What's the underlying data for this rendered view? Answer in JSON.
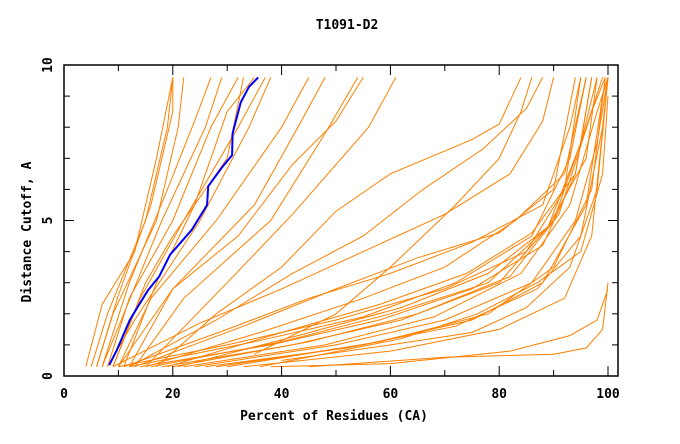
{
  "chart_data": {
    "type": "line",
    "title": "T1091-D2",
    "xlabel": "Percent of Residues (CA)",
    "ylabel": "Distance Cutoff, A",
    "xlim": [
      0,
      101.8
    ],
    "ylim": [
      0,
      10
    ],
    "xticks": [
      "0",
      "20",
      "40",
      "60",
      "80",
      "100"
    ],
    "yticks": [
      "0",
      "5",
      "10"
    ],
    "grid": false,
    "legend": "none",
    "colors": {
      "highlight": "#0000ff",
      "other": "#ff8000"
    },
    "highlight_series": [
      [
        8.3,
        0.35
      ],
      [
        9.7,
        0.83
      ],
      [
        12.1,
        1.8
      ],
      [
        15.4,
        2.75
      ],
      [
        17.5,
        3.2
      ],
      [
        19.5,
        3.9
      ],
      [
        23.5,
        4.7
      ],
      [
        26.3,
        5.5
      ],
      [
        26.5,
        6.1
      ],
      [
        29,
        6.7
      ],
      [
        30.9,
        7.1
      ],
      [
        31,
        7.8
      ],
      [
        32.5,
        8.8
      ],
      [
        34,
        9.3
      ],
      [
        35.7,
        9.6
      ]
    ],
    "series": [
      [
        [
          5,
          0.3
        ],
        [
          8,
          2
        ],
        [
          15,
          5
        ],
        [
          19,
          8
        ],
        [
          20,
          9.6
        ]
      ],
      [
        [
          6,
          0.3
        ],
        [
          9,
          2
        ],
        [
          17,
          5
        ],
        [
          21,
          8
        ],
        [
          22,
          9.6
        ]
      ],
      [
        [
          4,
          0.3
        ],
        [
          7,
          2.3
        ],
        [
          13,
          4
        ],
        [
          17,
          7
        ],
        [
          20,
          9.6
        ]
      ],
      [
        [
          7,
          0.3
        ],
        [
          11,
          2
        ],
        [
          18,
          5
        ],
        [
          26,
          8
        ],
        [
          29,
          9.6
        ]
      ],
      [
        [
          8,
          0.3
        ],
        [
          12,
          2.5
        ],
        [
          20,
          5
        ],
        [
          27,
          8
        ],
        [
          32,
          9.6
        ]
      ],
      [
        [
          9,
          0.3
        ],
        [
          14,
          2.5
        ],
        [
          22,
          5
        ],
        [
          32,
          8
        ],
        [
          37,
          9.6
        ]
      ],
      [
        [
          8,
          0.3
        ],
        [
          13,
          1.8
        ],
        [
          25,
          5
        ],
        [
          34,
          8
        ],
        [
          38,
          9.6
        ]
      ],
      [
        [
          10,
          0.3
        ],
        [
          16,
          2.5
        ],
        [
          28,
          5
        ],
        [
          40,
          8
        ],
        [
          45,
          9.6
        ]
      ],
      [
        [
          12,
          0.3
        ],
        [
          20,
          2.8
        ],
        [
          35,
          5.5
        ],
        [
          43,
          8
        ],
        [
          48,
          9.6
        ]
      ],
      [
        [
          13,
          0.3
        ],
        [
          22,
          2.5
        ],
        [
          38,
          5
        ],
        [
          48,
          7.8
        ],
        [
          54,
          9.6
        ]
      ],
      [
        [
          10,
          0.3
        ],
        [
          20,
          2.8
        ],
        [
          32,
          4.5
        ],
        [
          42,
          6.8
        ],
        [
          50,
          8.2
        ],
        [
          55,
          9.6
        ]
      ],
      [
        [
          15,
          0.3
        ],
        [
          30,
          3
        ],
        [
          42,
          5.2
        ],
        [
          56,
          8
        ],
        [
          61,
          9.6
        ]
      ],
      [
        [
          9,
          0.3
        ],
        [
          15,
          3
        ],
        [
          20,
          4.5
        ],
        [
          30,
          7
        ],
        [
          33,
          9.6
        ]
      ],
      [
        [
          6,
          0.3
        ],
        [
          10,
          2.6
        ],
        [
          16,
          5.5
        ],
        [
          20,
          8.5
        ],
        [
          20,
          9.6
        ]
      ],
      [
        [
          11,
          0.3
        ],
        [
          17,
          3
        ],
        [
          24,
          5.5
        ],
        [
          30,
          8.5
        ],
        [
          35,
          9.6
        ]
      ],
      [
        [
          7,
          0.3
        ],
        [
          12,
          3
        ],
        [
          19,
          6
        ],
        [
          24,
          8.2
        ],
        [
          27,
          9.6
        ]
      ],
      [
        [
          17,
          0.3
        ],
        [
          28,
          2
        ],
        [
          40,
          3.5
        ],
        [
          50,
          5.3
        ],
        [
          60,
          6.5
        ],
        [
          75,
          7.6
        ],
        [
          80,
          8.1
        ],
        [
          84,
          9.6
        ]
      ],
      [
        [
          35,
          0.7
        ],
        [
          50,
          2
        ],
        [
          60,
          3.5
        ],
        [
          72,
          5.5
        ],
        [
          80,
          7
        ],
        [
          84,
          8.5
        ],
        [
          86,
          9.6
        ]
      ],
      [
        [
          10,
          0.3
        ],
        [
          30,
          1
        ],
        [
          50,
          1.8
        ],
        [
          70,
          2.8
        ],
        [
          85,
          4
        ],
        [
          92,
          6
        ],
        [
          95,
          9.6
        ]
      ],
      [
        [
          12,
          0.3
        ],
        [
          35,
          1.1
        ],
        [
          55,
          1.9
        ],
        [
          72,
          3
        ],
        [
          86,
          4.5
        ],
        [
          93,
          7
        ],
        [
          96,
          9.6
        ]
      ],
      [
        [
          14,
          0.3
        ],
        [
          38,
          1
        ],
        [
          58,
          1.8
        ],
        [
          75,
          2.8
        ],
        [
          88,
          4.2
        ],
        [
          94,
          6.5
        ],
        [
          97,
          9.6
        ]
      ],
      [
        [
          16,
          0.3
        ],
        [
          40,
          1.1
        ],
        [
          60,
          2
        ],
        [
          78,
          3
        ],
        [
          89,
          4.8
        ],
        [
          95,
          7.5
        ],
        [
          98,
          9.6
        ]
      ],
      [
        [
          18,
          0.3
        ],
        [
          42,
          1
        ],
        [
          62,
          1.8
        ],
        [
          80,
          3
        ],
        [
          90,
          5
        ],
        [
          96,
          8
        ],
        [
          99,
          9.6
        ]
      ],
      [
        [
          20,
          0.3
        ],
        [
          45,
          1.1
        ],
        [
          65,
          2
        ],
        [
          82,
          3.2
        ],
        [
          91,
          5.2
        ],
        [
          97,
          8.5
        ],
        [
          99.5,
          9.6
        ]
      ],
      [
        [
          22,
          0.3
        ],
        [
          48,
          1
        ],
        [
          68,
          1.9
        ],
        [
          84,
          3.3
        ],
        [
          93,
          5.5
        ],
        [
          98,
          8.5
        ],
        [
          100,
          9.6
        ]
      ],
      [
        [
          11,
          0.3
        ],
        [
          30,
          1.5
        ],
        [
          45,
          2.5
        ],
        [
          60,
          3.3
        ],
        [
          75,
          4.3
        ],
        [
          88,
          5.5
        ],
        [
          93,
          8
        ],
        [
          95,
          9.6
        ]
      ],
      [
        [
          13,
          0.3
        ],
        [
          33,
          1.6
        ],
        [
          50,
          2.8
        ],
        [
          65,
          3.8
        ],
        [
          80,
          4.6
        ],
        [
          90,
          6
        ],
        [
          94,
          9.6
        ]
      ],
      [
        [
          15,
          0.3
        ],
        [
          36,
          1.4
        ],
        [
          55,
          2.5
        ],
        [
          70,
          3.5
        ],
        [
          83,
          5
        ],
        [
          92,
          6.5
        ],
        [
          96,
          9.6
        ]
      ],
      [
        [
          24,
          0.3
        ],
        [
          50,
          1
        ],
        [
          70,
          1.8
        ],
        [
          86,
          3
        ],
        [
          94,
          5
        ],
        [
          98,
          7.5
        ],
        [
          100,
          9.6
        ]
      ],
      [
        [
          26,
          0.3
        ],
        [
          52,
          0.9
        ],
        [
          72,
          1.6
        ],
        [
          87,
          2.8
        ],
        [
          95,
          4.5
        ],
        [
          99,
          8
        ],
        [
          100,
          9.6
        ]
      ],
      [
        [
          28,
          0.3
        ],
        [
          55,
          1
        ],
        [
          75,
          1.8
        ],
        [
          88,
          3
        ],
        [
          96,
          5.5
        ],
        [
          99,
          9
        ],
        [
          100,
          9.6
        ]
      ],
      [
        [
          30,
          0.3
        ],
        [
          58,
          1.1
        ],
        [
          78,
          2
        ],
        [
          90,
          3.5
        ],
        [
          97,
          6
        ],
        [
          99.5,
          9.6
        ]
      ],
      [
        [
          19,
          0.3
        ],
        [
          40,
          1.4
        ],
        [
          58,
          2.3
        ],
        [
          74,
          3.3
        ],
        [
          86,
          4.6
        ],
        [
          94,
          6.5
        ],
        [
          97,
          9.6
        ]
      ],
      [
        [
          21,
          0.3
        ],
        [
          43,
          1.3
        ],
        [
          62,
          2.2
        ],
        [
          78,
          3.3
        ],
        [
          89,
          4.8
        ],
        [
          96,
          7
        ],
        [
          98,
          9.6
        ]
      ],
      [
        [
          9,
          0.3
        ],
        [
          25,
          1.7
        ],
        [
          40,
          2.8
        ],
        [
          55,
          4
        ],
        [
          70,
          5.2
        ],
        [
          82,
          6.5
        ],
        [
          88,
          8.2
        ],
        [
          90,
          9.6
        ]
      ],
      [
        [
          12,
          0.3
        ],
        [
          28,
          1.8
        ],
        [
          42,
          3.3
        ],
        [
          55,
          4.5
        ],
        [
          66,
          6
        ],
        [
          77,
          7.3
        ],
        [
          85,
          8.6
        ],
        [
          88,
          9.6
        ]
      ],
      [
        [
          33,
          0.3
        ],
        [
          60,
          0.8
        ],
        [
          80,
          1.5
        ],
        [
          92,
          2.5
        ],
        [
          97,
          4.5
        ],
        [
          100,
          9.6
        ]
      ],
      [
        [
          38,
          0.3
        ],
        [
          60,
          0.4
        ],
        [
          82,
          0.8
        ],
        [
          93,
          1.3
        ],
        [
          98,
          1.8
        ],
        [
          100,
          2.8
        ]
      ],
      [
        [
          45,
          0.3
        ],
        [
          70,
          0.6
        ],
        [
          90,
          0.7
        ],
        [
          96,
          0.9
        ],
        [
          99,
          1.5
        ],
        [
          100,
          3
        ]
      ],
      [
        [
          40,
          0.5
        ],
        [
          60,
          1
        ],
        [
          75,
          1.4
        ],
        [
          85,
          2.2
        ],
        [
          93,
          3.5
        ],
        [
          98,
          6
        ],
        [
          100,
          9.6
        ]
      ],
      [
        [
          36,
          0.3
        ],
        [
          62,
          1.2
        ],
        [
          76,
          2
        ],
        [
          87,
          3
        ],
        [
          95,
          4
        ],
        [
          99,
          6.5
        ],
        [
          100,
          9
        ]
      ]
    ]
  }
}
